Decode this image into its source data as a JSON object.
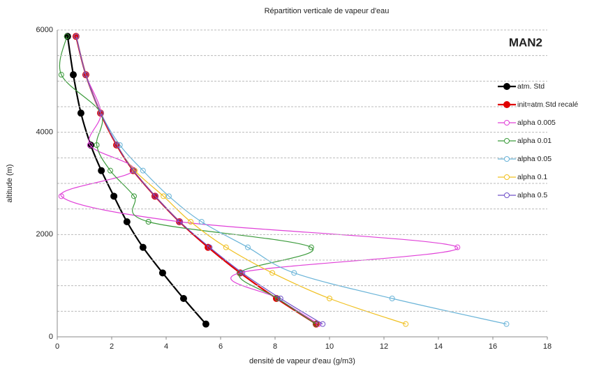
{
  "chart_data": {
    "type": "line",
    "title": "Répartition verticale de vapeur d'eau",
    "annotation": "MAN2",
    "x_label": "densité de vapeur d'eau (g/m3)",
    "y_label": "altitude (m)",
    "y": [
      250,
      750,
      1250,
      1750,
      2250,
      2750,
      3250,
      3750,
      4375,
      5125,
      5875
    ],
    "xlim": [
      0,
      18
    ],
    "xticks": [
      0,
      2,
      4,
      6,
      8,
      10,
      12,
      14,
      16,
      18
    ],
    "ylim": [
      0,
      6000
    ],
    "yticks": [
      0,
      2000,
      4000,
      6000
    ],
    "yminorticks": [
      500,
      1000,
      1500,
      2500,
      3000,
      3500,
      4500,
      5000,
      5500
    ],
    "grid": true,
    "smooth": true,
    "legend": "right",
    "series": [
      {
        "name": "atm. Std",
        "color": "#000000",
        "marker": "filled",
        "values": [
          5.46,
          4.64,
          3.87,
          3.15,
          2.56,
          2.08,
          1.62,
          1.23,
          0.87,
          0.59,
          0.38
        ]
      },
      {
        "name": "init=atm Std recalé",
        "color": "#e00000",
        "marker": "filled",
        "values": [
          9.51,
          8.05,
          6.72,
          5.54,
          4.49,
          3.59,
          2.79,
          2.18,
          1.59,
          1.05,
          0.69
        ]
      },
      {
        "name": "alpha 0.005",
        "color": "#e040d8",
        "marker": "open",
        "values": [
          9.6,
          8.1,
          6.7,
          14.7,
          4.5,
          0.15,
          2.8,
          1.2,
          1.6,
          1.05,
          0.7
        ]
      },
      {
        "name": "alpha 0.01",
        "color": "#3a9a3a",
        "marker": "open",
        "values": [
          9.5,
          8.1,
          6.7,
          9.33,
          3.35,
          2.82,
          1.95,
          1.45,
          1.6,
          0.15,
          0.35
        ]
      },
      {
        "name": "alpha 0.05",
        "color": "#6ab4d8",
        "marker": "open",
        "values": [
          16.5,
          12.3,
          8.7,
          7.0,
          5.3,
          4.1,
          3.15,
          2.3,
          1.6,
          1.05,
          0.7
        ]
      },
      {
        "name": "alpha 0.1",
        "color": "#f0c020",
        "marker": "open",
        "values": [
          12.8,
          10.0,
          7.9,
          6.2,
          4.9,
          3.9,
          2.85,
          2.2,
          1.6,
          1.05,
          0.7
        ]
      },
      {
        "name": "alpha 0.5",
        "color": "#7050c8",
        "marker": "open",
        "values": [
          9.75,
          8.2,
          6.8,
          5.6,
          4.5,
          3.6,
          2.8,
          2.2,
          1.6,
          1.05,
          0.7
        ]
      }
    ]
  }
}
